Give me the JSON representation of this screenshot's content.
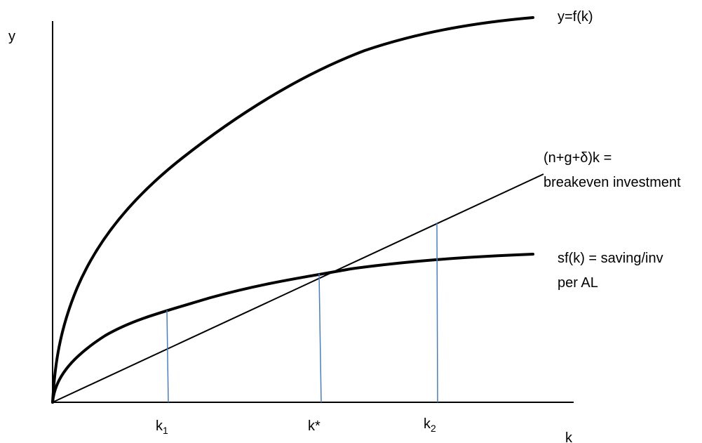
{
  "diagram": {
    "axes": {
      "y_label": "y",
      "x_label": "k"
    },
    "curves": {
      "output": {
        "label": "y=f(k)",
        "color": "#000000"
      },
      "breakeven": {
        "label_line1": "(n+g+δ)k =",
        "label_line2": "breakeven investment",
        "color": "#000000"
      },
      "saving": {
        "label_line1": "sf(k) = saving/inv",
        "label_line2": "per AL",
        "color": "#000000"
      }
    },
    "markers": {
      "k1": {
        "base": "k",
        "sub": "1"
      },
      "kstar": {
        "label": "k*"
      },
      "k2": {
        "base": "k",
        "sub": "2"
      },
      "color": "#4a7ebb"
    }
  }
}
